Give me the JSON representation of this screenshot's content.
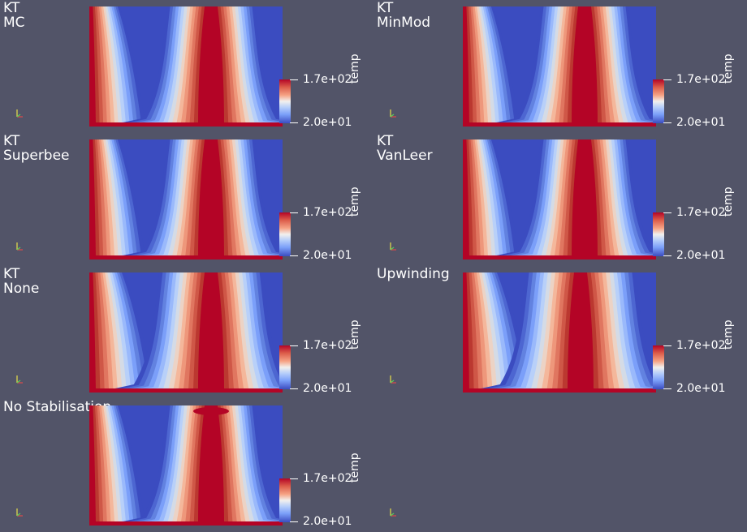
{
  "panels": [
    {
      "label": "KT\nMC"
    },
    {
      "label": "KT\nMinMod"
    },
    {
      "label": "KT\nSuperbee"
    },
    {
      "label": "KT\nVanLeer"
    },
    {
      "label": "KT\nNone"
    },
    {
      "label": "Upwinding"
    },
    {
      "label": "No Stabilisation"
    }
  ],
  "colorbar": {
    "title": "temp",
    "max_label": "1.7e+02",
    "min_label": "2.0e+01",
    "colors": [
      "#b40426",
      "#dd5f4b",
      "#f6a385",
      "#f2f0ee",
      "#b4cdfa",
      "#7b9ff9",
      "#3b4cc0"
    ]
  },
  "field_colors": {
    "background": "#525468",
    "cold": "#3b4cc0",
    "hot": "#b40426"
  }
}
